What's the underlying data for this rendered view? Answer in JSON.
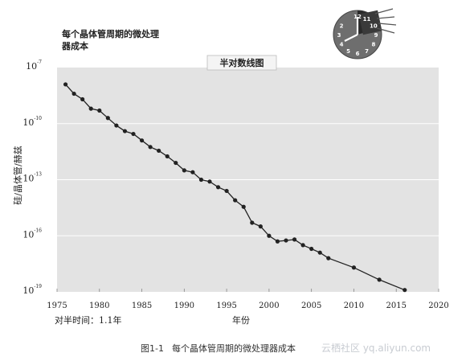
{
  "corner_title": "每个晶体管周期的微处理器成本",
  "footer": {
    "caption_number": "图1-1",
    "caption_text": "每个晶体管周期的微处理器成本",
    "watermark": "云栖社区 yq.aliyun.com"
  },
  "clock_icon": {
    "name": "clock-icon",
    "digits": [
      "12",
      "11",
      "10",
      "9",
      "8",
      "7",
      "6",
      "5",
      "4",
      "3",
      "2"
    ]
  },
  "colors": {
    "plot_bg": "#e3e3e3",
    "grid": "#ffffff",
    "line": "#222222",
    "banner_bg": "#f4f4f4"
  },
  "chart_data": {
    "type": "line",
    "title": "半对数线图",
    "xlabel": "年份",
    "ylabel": "硅/晶体管/赫兹",
    "yscale": "log",
    "xlim": [
      1975,
      2020
    ],
    "ylim_exponent": [
      -19,
      -7
    ],
    "x_ticks": [
      {
        "value": 1975,
        "label": "1975"
      },
      {
        "value": 1980,
        "label": "1980"
      },
      {
        "value": 1985,
        "label": "1985"
      },
      {
        "value": 1990,
        "label": "1990"
      },
      {
        "value": 1995,
        "label": "1995"
      },
      {
        "value": 2000,
        "label": "2000"
      },
      {
        "value": 2005,
        "label": "2005"
      },
      {
        "value": 2010,
        "label": "2010"
      },
      {
        "value": 2015,
        "label": "2015"
      },
      {
        "value": 2020,
        "label": "2020"
      }
    ],
    "y_ticks": [
      {
        "exponent": -7,
        "base": "10",
        "sup": "-7"
      },
      {
        "exponent": -10,
        "base": "10",
        "sup": "-10"
      },
      {
        "exponent": -13,
        "base": "10",
        "sup": "-13"
      },
      {
        "exponent": -16,
        "base": "10",
        "sup": "-16"
      },
      {
        "exponent": -19,
        "base": "10",
        "sup": "-19"
      }
    ],
    "halving_note": "对半时间：1.1年",
    "series": [
      {
        "x": [
          1976,
          1977,
          1978,
          1979,
          1980,
          1981,
          1982,
          1983,
          1984,
          1985,
          1986,
          1987,
          1988,
          1989,
          1990,
          1991,
          1992,
          1993,
          1994,
          1995,
          1996,
          1997,
          1998,
          1999,
          2000,
          2001,
          2002,
          2003,
          2004,
          2005,
          2006,
          2007,
          2010,
          2013,
          2016
        ],
        "y_exponent": [
          -7.9,
          -8.4,
          -8.7,
          -9.2,
          -9.3,
          -9.7,
          -10.1,
          -10.4,
          -10.55,
          -10.9,
          -11.25,
          -11.45,
          -11.75,
          -12.1,
          -12.5,
          -12.6,
          -13.0,
          -13.1,
          -13.4,
          -13.6,
          -14.1,
          -14.45,
          -15.3,
          -15.5,
          -16.0,
          -16.3,
          -16.25,
          -16.2,
          -16.5,
          -16.7,
          -16.9,
          -17.2,
          -17.7,
          -18.35,
          -18.9
        ]
      }
    ]
  }
}
